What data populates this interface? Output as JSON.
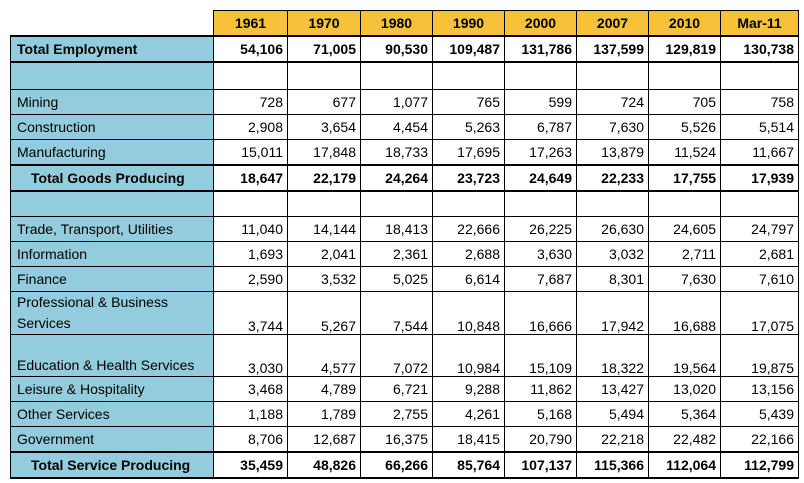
{
  "table": {
    "columns": [
      "1961",
      "1970",
      "1980",
      "1990",
      "2000",
      "2007",
      "2010",
      "Mar-11"
    ],
    "rows": [
      {
        "label": "Total Employment",
        "cells": [
          "54,106",
          "71,005",
          "90,530",
          "109,487",
          "131,786",
          "137,599",
          "129,819",
          "130,738"
        ]
      },
      {
        "label": "Mining",
        "cells": [
          "728",
          "677",
          "1,077",
          "765",
          "599",
          "724",
          "705",
          "758"
        ]
      },
      {
        "label": "Construction",
        "cells": [
          "2,908",
          "3,654",
          "4,454",
          "5,263",
          "6,787",
          "7,630",
          "5,526",
          "5,514"
        ]
      },
      {
        "label": "Manufacturing",
        "cells": [
          "15,011",
          "17,848",
          "18,733",
          "17,695",
          "17,263",
          "13,879",
          "11,524",
          "11,667"
        ]
      },
      {
        "label": "Total Goods Producing",
        "cells": [
          "18,647",
          "22,179",
          "24,264",
          "23,723",
          "24,649",
          "22,233",
          "17,755",
          "17,939"
        ]
      },
      {
        "label": "Trade, Transport, Utilities",
        "cells": [
          "11,040",
          "14,144",
          "18,413",
          "22,666",
          "26,225",
          "26,630",
          "24,605",
          "24,797"
        ]
      },
      {
        "label": "Information",
        "cells": [
          "1,693",
          "2,041",
          "2,361",
          "2,688",
          "3,630",
          "3,032",
          "2,711",
          "2,681"
        ]
      },
      {
        "label": "Finance",
        "cells": [
          "2,590",
          "3,532",
          "5,025",
          "6,614",
          "7,687",
          "8,301",
          "7,630",
          "7,610"
        ]
      },
      {
        "label": "Professional & Business Services",
        "cells": [
          "3,744",
          "5,267",
          "7,544",
          "10,848",
          "16,666",
          "17,942",
          "16,688",
          "17,075"
        ]
      },
      {
        "label": "Education & Health Services",
        "cells": [
          "3,030",
          "4,577",
          "7,072",
          "10,984",
          "15,109",
          "18,322",
          "19,564",
          "19,875"
        ]
      },
      {
        "label": "Leisure & Hospitality",
        "cells": [
          "3,468",
          "4,789",
          "6,721",
          "9,288",
          "11,862",
          "13,427",
          "13,020",
          "13,156"
        ]
      },
      {
        "label": "Other Services",
        "cells": [
          "1,188",
          "1,789",
          "2,755",
          "4,261",
          "5,168",
          "5,494",
          "5,364",
          "5,439"
        ]
      },
      {
        "label": "Government",
        "cells": [
          "8,706",
          "12,687",
          "16,375",
          "18,415",
          "20,790",
          "22,218",
          "22,482",
          "22,166"
        ]
      },
      {
        "label": "Total Service Producing",
        "cells": [
          "35,459",
          "48,826",
          "66,266",
          "85,764",
          "107,137",
          "115,366",
          "112,064",
          "112,799"
        ]
      }
    ]
  }
}
